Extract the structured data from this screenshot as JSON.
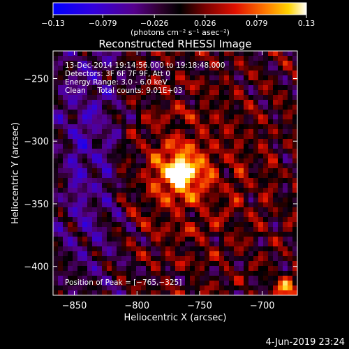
{
  "chart_data": {
    "type": "heatmap",
    "title": "Reconstructed RHESSI Image",
    "xlabel": "Heliocentric X (arcsec)",
    "ylabel": "Heliocentric Y (arcsec)",
    "xlim": [
      -867,
      -672
    ],
    "ylim": [
      -423,
      -228
    ],
    "x_ticks": [
      -850,
      -800,
      -750,
      -700
    ],
    "x_tick_labels": [
      "−850",
      "−800",
      "−750",
      "−700"
    ],
    "y_ticks": [
      -250,
      -300,
      -350,
      -400
    ],
    "y_tick_labels": [
      "−250",
      "−300",
      "−350",
      "−400"
    ],
    "colorbar": {
      "min": -0.13,
      "max": 0.13,
      "ticks": [
        -0.13,
        -0.079,
        -0.026,
        0.026,
        0.079,
        0.13
      ],
      "tick_labels": [
        "−0.13",
        "−0.079",
        "−0.026",
        "0.026",
        "0.079",
        "0.13"
      ],
      "label": "(photons cm⁻² s⁻¹ asec⁻²)"
    },
    "peak": {
      "x": -765,
      "y": -325
    },
    "annotations": [
      "13-Dec-2014 19:14:56.000 to 19:18:48.000",
      "Detectors: 3F 6F 7F 9F, Att 0",
      "Energy Range: 3.0 - 6.0 keV",
      "Clean     Total counts: 9.01E+03"
    ],
    "peak_label": "Position of Peak = [−765,−325]",
    "grid": false
  },
  "footer": {
    "date": "4-Jun-2019 23:24"
  }
}
